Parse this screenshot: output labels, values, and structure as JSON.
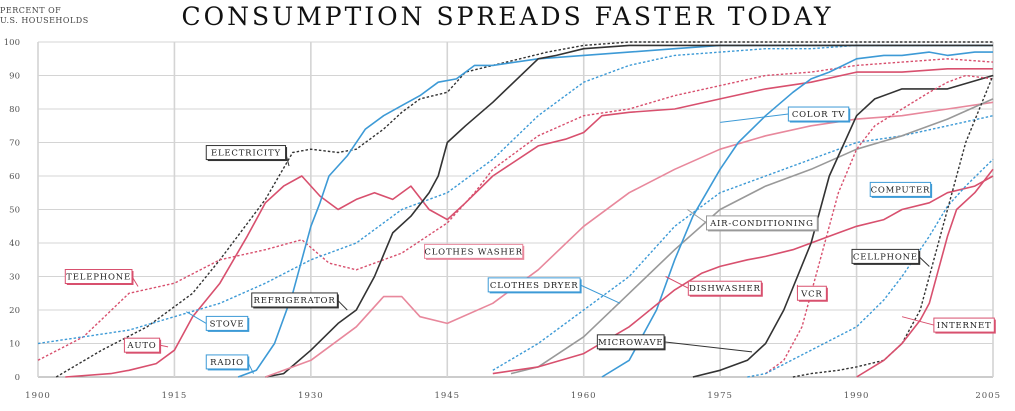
{
  "chart_data": {
    "type": "line",
    "title": "CONSUMPTION SPREADS FASTER TODAY",
    "ylabel_lines": [
      "PERCENT OF",
      "U.S. HOUSEHOLDS"
    ],
    "xlim": [
      1900,
      2005
    ],
    "ylim": [
      0,
      100
    ],
    "x_ticks": [
      1900,
      1915,
      1930,
      1945,
      1960,
      1975,
      1990,
      2005
    ],
    "x_tick_labels": [
      "1900",
      "1915",
      "1930",
      "1945",
      "1960",
      "1975",
      "1990",
      "2005"
    ],
    "y_ticks": [
      0,
      10,
      20,
      30,
      40,
      50,
      60,
      70,
      80,
      90,
      100
    ],
    "y_tick_labels": [
      "0",
      "10",
      "20",
      "30",
      "40",
      "50",
      "60",
      "70",
      "80",
      "90",
      "100"
    ],
    "grid": true,
    "colors": {
      "black": "#333333",
      "blue": "#3d9ad6",
      "pink": "#d8506e",
      "lightpink": "#e8889c",
      "grey": "#999999",
      "grid": "#d4d4d4"
    },
    "series": [
      {
        "name": "ELECTRICITY",
        "color": "black",
        "dashed": true,
        "label": {
          "text": "ELECTRICITY",
          "x": 1918.5,
          "y": 67,
          "target": [
            1927.6,
            63
          ]
        },
        "x": [
          1902,
          1907,
          1912,
          1917,
          1920,
          1925,
          1928,
          1930,
          1933,
          1935,
          1938,
          1940,
          1942,
          1945,
          1947,
          1950,
          1953,
          1956,
          1960,
          1965,
          1970,
          2005
        ],
        "y": [
          0,
          8,
          15,
          25,
          35,
          53,
          67,
          68,
          67,
          68,
          74,
          79,
          83,
          85,
          91,
          93,
          95,
          97,
          99,
          100,
          100,
          100
        ]
      },
      {
        "name": "TELEPHONE",
        "color": "pink",
        "dashed": true,
        "label": {
          "text": "TELEPHONE",
          "x": 1903,
          "y": 30,
          "target": [
            1911,
            27
          ]
        },
        "x": [
          1900,
          1905,
          1910,
          1915,
          1920,
          1925,
          1929,
          1932,
          1935,
          1940,
          1945,
          1948,
          1950,
          1955,
          1960,
          1965,
          1970,
          1975,
          1980,
          1985,
          1990,
          1995,
          2000,
          2005
        ],
        "y": [
          5,
          12,
          25,
          28,
          35,
          38,
          41,
          34,
          32,
          37,
          46,
          55,
          62,
          72,
          78,
          80,
          84,
          87,
          90,
          91,
          93,
          94,
          95,
          94
        ]
      },
      {
        "name": "AUTO",
        "color": "pink",
        "dashed": false,
        "label": {
          "text": "AUTO",
          "x": 1909.5,
          "y": 9.5,
          "target": [
            1914.3,
            9
          ]
        },
        "x": [
          1903,
          1908,
          1910,
          1913,
          1915,
          1917,
          1920,
          1923,
          1925,
          1927,
          1929,
          1931,
          1933,
          1935,
          1937,
          1939,
          1941,
          1943,
          1945,
          1947,
          1950,
          1955,
          1958,
          1960,
          1962,
          1965,
          1970,
          1975,
          1980,
          1985,
          1990,
          1995,
          2000,
          2005
        ],
        "y": [
          0,
          1,
          2,
          4,
          8,
          18,
          28,
          42,
          52,
          57,
          60,
          54,
          50,
          53,
          55,
          53,
          57,
          50,
          47,
          52,
          60,
          69,
          71,
          73,
          78,
          79,
          80,
          83,
          86,
          88,
          91,
          91,
          92,
          92
        ]
      },
      {
        "name": "STOVE",
        "color": "blue",
        "dashed": true,
        "label": {
          "text": "STOVE",
          "x": 1918.5,
          "y": 16,
          "target": [
            1916.3,
            19.5
          ]
        },
        "x": [
          1900,
          1905,
          1910,
          1915,
          1920,
          1925,
          1930,
          1935,
          1940,
          1945,
          1950,
          1955,
          1960,
          1965,
          1970,
          1975,
          1980,
          1985,
          1990,
          1995,
          2000,
          2005
        ],
        "y": [
          10,
          12,
          14,
          18,
          22,
          28,
          35,
          40,
          50,
          55,
          65,
          78,
          88,
          93,
          96,
          97,
          98,
          98,
          99,
          99,
          99,
          99
        ]
      },
      {
        "name": "RADIO",
        "color": "blue",
        "dashed": false,
        "label": {
          "text": "RADIO",
          "x": 1918.5,
          "y": 4.5,
          "target": [
            1923.7,
            1
          ]
        },
        "x": [
          1922,
          1924,
          1926,
          1928,
          1929,
          1930,
          1931,
          1932,
          1934,
          1936,
          1938,
          1940,
          1942,
          1944,
          1946,
          1948,
          1950,
          1955,
          1960,
          1965,
          1970,
          1975,
          1980,
          1985,
          1990,
          1995,
          2000,
          2005
        ],
        "y": [
          0,
          2,
          10,
          25,
          35,
          45,
          52,
          60,
          66,
          74,
          78,
          81,
          84,
          88,
          89,
          93,
          93,
          95,
          96,
          97,
          98,
          99,
          99,
          99,
          99,
          99,
          99,
          99
        ]
      },
      {
        "name": "REFRIGERATOR",
        "color": "black",
        "dashed": false,
        "label": {
          "text": "REFRIGERATOR",
          "x": 1923.5,
          "y": 23,
          "target": [
            1934,
            20
          ]
        },
        "x": [
          1925,
          1927,
          1930,
          1933,
          1935,
          1937,
          1939,
          1941,
          1943,
          1944,
          1945,
          1947,
          1950,
          1955,
          1957,
          1960,
          1965,
          1970,
          1975,
          1980,
          1985,
          1990,
          1995,
          2000,
          2005
        ],
        "y": [
          0,
          1,
          8,
          16,
          20,
          30,
          43,
          48,
          55,
          60,
          70,
          75,
          82,
          95,
          96,
          98,
          99,
          99,
          99,
          99,
          99,
          99,
          99,
          99,
          99
        ]
      },
      {
        "name": "CLOTHES WASHER",
        "color": "lightpink",
        "dashed": false,
        "label": {
          "text": "CLOTHES WASHER",
          "x": 1942.5,
          "y": 37.5,
          "target": [
            1951,
            36
          ]
        },
        "x": [
          1925,
          1930,
          1935,
          1938,
          1940,
          1942,
          1945,
          1950,
          1955,
          1960,
          1965,
          1970,
          1975,
          1980,
          1985,
          1990,
          1995,
          2000,
          2005
        ],
        "y": [
          0,
          5,
          15,
          24,
          24,
          18,
          16,
          22,
          32,
          45,
          55,
          62,
          68,
          72,
          75,
          77,
          78,
          80,
          82
        ]
      },
      {
        "name": "CLOTHES DRYER",
        "color": "blue",
        "dashed": true,
        "label": {
          "text": "CLOTHES DRYER",
          "x": 1949.5,
          "y": 27.5,
          "target": [
            1964,
            22
          ]
        },
        "x": [
          1950,
          1955,
          1960,
          1965,
          1970,
          1975,
          1980,
          1985,
          1990,
          1995,
          2000,
          2005
        ],
        "y": [
          2,
          10,
          20,
          30,
          45,
          55,
          60,
          65,
          70,
          72,
          75,
          78
        ]
      },
      {
        "name": "AIR-CONDITIONING",
        "color": "grey",
        "dashed": false,
        "label": {
          "text": "AIR-CONDITIONING",
          "x": 1973.5,
          "y": 46,
          "target": [
            1971.4,
            50
          ]
        },
        "x": [
          1952,
          1955,
          1960,
          1965,
          1970,
          1975,
          1980,
          1985,
          1990,
          1995,
          2000,
          2005
        ],
        "y": [
          1,
          3,
          12,
          25,
          38,
          50,
          57,
          62,
          68,
          72,
          77,
          83
        ]
      },
      {
        "name": "COLOR TV",
        "color": "blue",
        "dashed": false,
        "label": {
          "text": "COLOR TV",
          "x": 1982.5,
          "y": 78.5,
          "target": [
            1975,
            76
          ]
        },
        "x": [
          1962,
          1965,
          1968,
          1970,
          1972,
          1975,
          1977,
          1980,
          1983,
          1985,
          1987,
          1990,
          1993,
          1995,
          1998,
          2000,
          2003,
          2005
        ],
        "y": [
          0,
          5,
          20,
          35,
          48,
          62,
          70,
          78,
          85,
          89,
          91,
          95,
          96,
          96,
          97,
          96,
          97,
          97
        ]
      },
      {
        "name": "DISHWASHER",
        "color": "pink",
        "dashed": false,
        "label": {
          "text": "DISHWASHER",
          "x": 1971.5,
          "y": 26.5,
          "target": [
            1969,
            30
          ]
        },
        "x": [
          1950,
          1955,
          1960,
          1965,
          1970,
          1973,
          1975,
          1978,
          1980,
          1983,
          1985,
          1988,
          1990,
          1993,
          1995,
          1998,
          2000,
          2003,
          2005
        ],
        "y": [
          1,
          3,
          7,
          15,
          26,
          31,
          33,
          35,
          36,
          38,
          40,
          43,
          45,
          47,
          50,
          52,
          55,
          57,
          60
        ]
      },
      {
        "name": "MICROWAVE",
        "color": "black",
        "dashed": false,
        "label": {
          "text": "MICROWAVE",
          "x": 1961.5,
          "y": 10.5,
          "target": [
            1978.5,
            7.5
          ]
        },
        "x": [
          1972,
          1975,
          1978,
          1980,
          1982,
          1985,
          1987,
          1990,
          1992,
          1995,
          2000,
          2005
        ],
        "y": [
          0,
          2,
          5,
          10,
          20,
          40,
          60,
          78,
          83,
          86,
          86,
          90
        ]
      },
      {
        "name": "VCR",
        "color": "pink",
        "dashed": true,
        "label": {
          "text": "VCR",
          "x": 1983.5,
          "y": 25,
          "target": [
            1983.5,
            27.5
          ]
        },
        "x": [
          1980,
          1982,
          1984,
          1986,
          1988,
          1990,
          1992,
          1995,
          1998,
          2000,
          2002,
          2005
        ],
        "y": [
          1,
          5,
          15,
          35,
          55,
          68,
          75,
          80,
          85,
          88,
          90,
          89
        ]
      },
      {
        "name": "COMPUTER",
        "color": "blue",
        "dashed": true,
        "label": {
          "text": "COMPUTER",
          "x": 1991.5,
          "y": 56,
          "target": [
            1998,
            54
          ]
        },
        "x": [
          1978,
          1980,
          1985,
          1990,
          1993,
          1995,
          1998,
          2000,
          2002,
          2005
        ],
        "y": [
          0,
          1,
          8,
          15,
          23,
          30,
          42,
          51,
          57,
          65
        ]
      },
      {
        "name": "CELLPHONE",
        "color": "black",
        "dashed": true,
        "label": {
          "text": "CELLPHONE",
          "x": 1989.5,
          "y": 36,
          "target": [
            1998,
            33
          ]
        },
        "x": [
          1983,
          1985,
          1988,
          1990,
          1993,
          1995,
          1997,
          1998,
          2000,
          2002,
          2005
        ],
        "y": [
          0,
          1,
          2,
          3,
          5,
          10,
          20,
          30,
          50,
          70,
          90
        ]
      },
      {
        "name": "INTERNET",
        "color": "pink",
        "dashed": false,
        "label": {
          "text": "INTERNET",
          "x": 1998.5,
          "y": 15.5,
          "target": [
            1995,
            18
          ]
        },
        "x": [
          1990,
          1993,
          1995,
          1997,
          1998,
          2000,
          2001,
          2003,
          2005
        ],
        "y": [
          0,
          5,
          10,
          17,
          22,
          42,
          50,
          55,
          62
        ]
      }
    ]
  }
}
